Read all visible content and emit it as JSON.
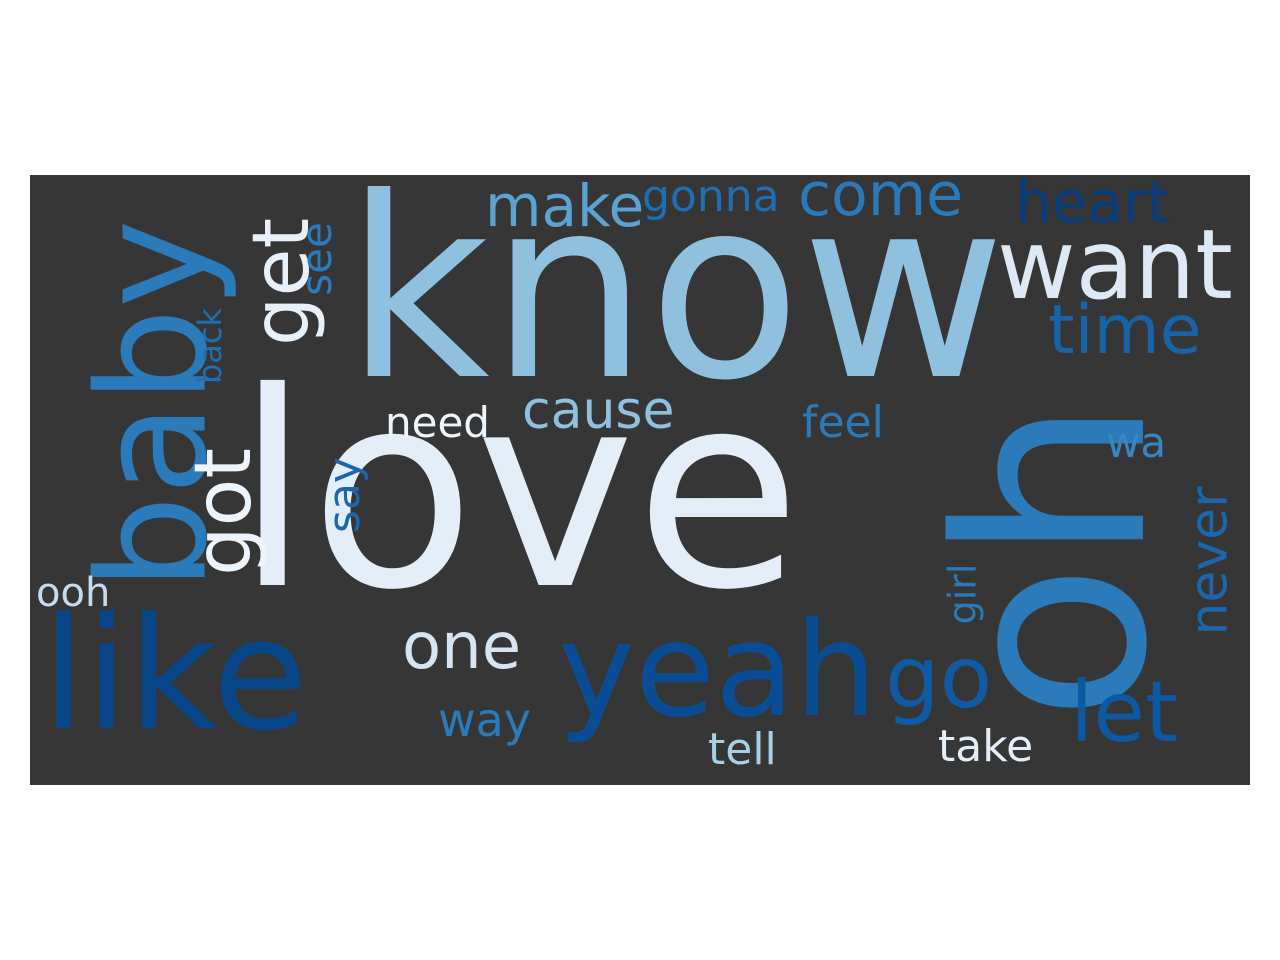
{
  "wordcloud": {
    "words": [
      {
        "key": "know",
        "text": "know",
        "color": "#8fc1df"
      },
      {
        "key": "love",
        "text": "love",
        "color": "#e3eef9"
      },
      {
        "key": "oh",
        "text": "oh",
        "color": "#2b7bba"
      },
      {
        "key": "baby",
        "text": "baby",
        "color": "#2b7bba"
      },
      {
        "key": "like",
        "text": "like",
        "color": "#08468a"
      },
      {
        "key": "yeah",
        "text": "yeah",
        "color": "#0b4d94"
      },
      {
        "key": "want",
        "text": "want",
        "color": "#dde9f5"
      },
      {
        "key": "get",
        "text": "get",
        "color": "#e8f1fa"
      },
      {
        "key": "got",
        "text": "got",
        "color": "#eef4fb"
      },
      {
        "key": "go",
        "text": "go",
        "color": "#0f5aa3"
      },
      {
        "key": "let",
        "text": "let",
        "color": "#0d58a0"
      },
      {
        "key": "time",
        "text": "time",
        "color": "#1763a8"
      },
      {
        "key": "come",
        "text": "come",
        "color": "#2a79b8"
      },
      {
        "key": "one",
        "text": "one",
        "color": "#d5e5f3"
      },
      {
        "key": "make",
        "text": "make",
        "color": "#5ba3d0"
      },
      {
        "key": "heart",
        "text": "heart",
        "color": "#083c7a"
      },
      {
        "key": "cause",
        "text": "cause",
        "color": "#8fc1df"
      },
      {
        "key": "never",
        "text": "never",
        "color": "#1a67ab"
      },
      {
        "key": "gonna",
        "text": "gonna",
        "color": "#1f6eb3"
      },
      {
        "key": "way",
        "text": "way",
        "color": "#2b7bba"
      },
      {
        "key": "take",
        "text": "take",
        "color": "#e3eef9"
      },
      {
        "key": "tell",
        "text": "tell",
        "color": "#a9cfe5"
      },
      {
        "key": "feel",
        "text": "feel",
        "color": "#2a79b8"
      },
      {
        "key": "say",
        "text": "say",
        "color": "#1a67ab"
      },
      {
        "key": "need",
        "text": "need",
        "color": "#eef4fb"
      },
      {
        "key": "see",
        "text": "see",
        "color": "#2b7bba"
      },
      {
        "key": "wa",
        "text": "wa",
        "color": "#3787c0"
      },
      {
        "key": "girl",
        "text": "girl",
        "color": "#2a79b8"
      },
      {
        "key": "ooh",
        "text": "ooh",
        "color": "#c6dbef"
      },
      {
        "key": "back",
        "text": "back",
        "color": "#1f6eb3"
      }
    ]
  }
}
